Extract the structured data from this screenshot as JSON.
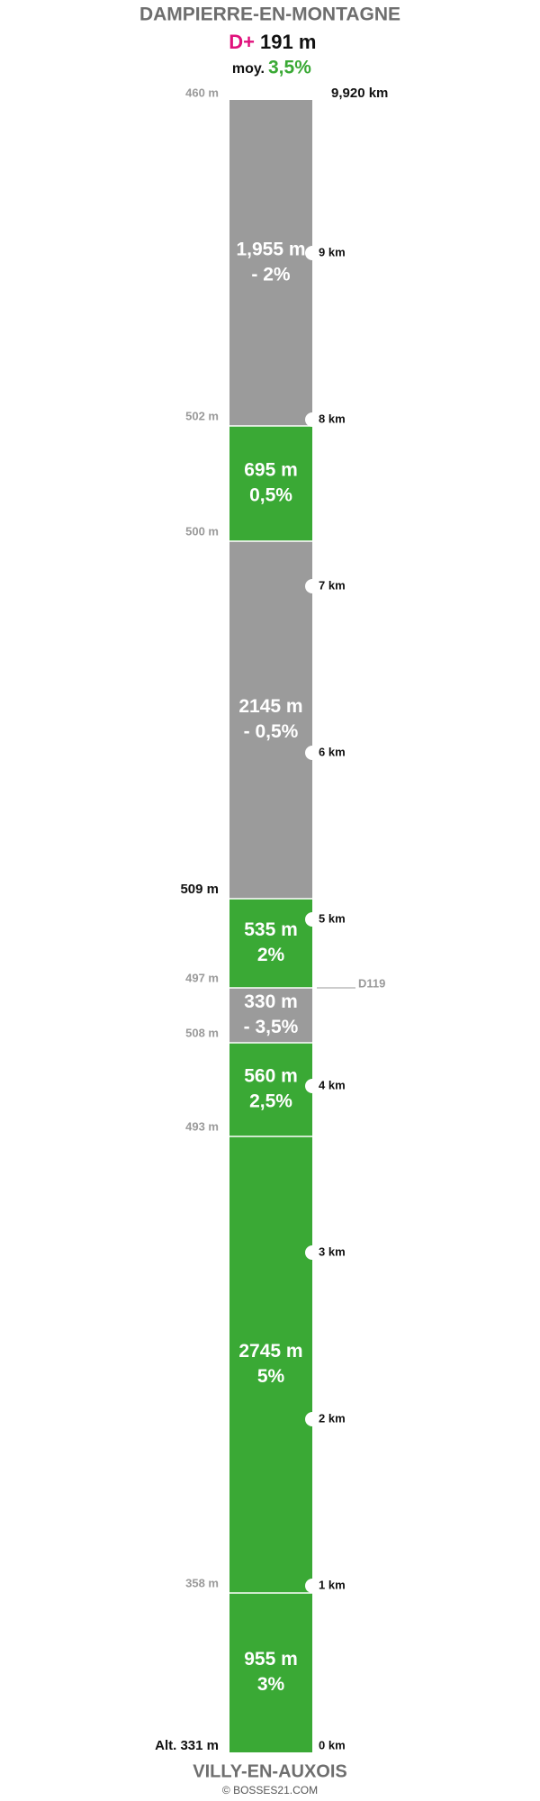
{
  "header": {
    "title": "DAMPIERRE-EN-MONTAGNE",
    "gain_label": "D+",
    "gain": "191 m",
    "avg_label": "moy.",
    "avg": "3,5%"
  },
  "segments": [
    {
      "length": "1,955 m",
      "grade": "- 2%",
      "color": "#9b9b9b"
    },
    {
      "length": "695 m",
      "grade": "0,5%",
      "color": "#3aa935"
    },
    {
      "length": "2145 m",
      "grade": "- 0,5%",
      "color": "#9b9b9b"
    },
    {
      "length": "535 m",
      "grade": "2%",
      "color": "#3aa935"
    },
    {
      "length": "330 m",
      "grade": "- 3,5%",
      "color": "#9b9b9b"
    },
    {
      "length": "560 m",
      "grade": "2,5%",
      "color": "#3aa935"
    },
    {
      "length": "2745 m",
      "grade": "5%",
      "color": "#3aa935"
    },
    {
      "length": "955 m",
      "grade": "3%",
      "color": "#3aa935"
    }
  ],
  "altitudes": [
    "460 m",
    "502 m",
    "500 m",
    "509 m",
    "497 m",
    "508 m",
    "493 m",
    "358 m",
    "Alt. 331 m"
  ],
  "km_markers": [
    "9,920 km",
    "9 km",
    "8 km",
    "7 km",
    "6 km",
    "5 km",
    "4 km",
    "3 km",
    "2 km",
    "1 km",
    "0 km"
  ],
  "road": "D119",
  "footer": {
    "title": "VILLY-EN-AUXOIS",
    "credit": "© BOSSES21.COM"
  }
}
